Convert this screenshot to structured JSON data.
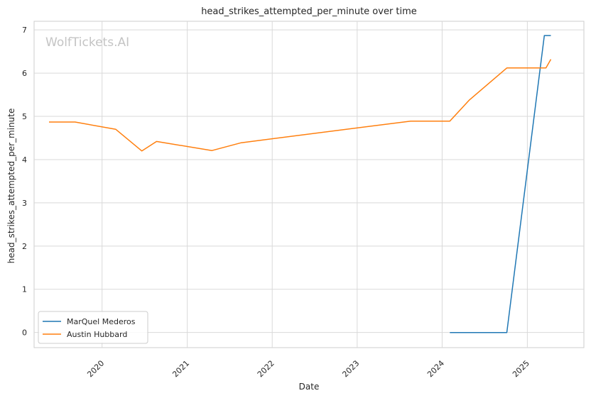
{
  "chart_data": {
    "type": "line",
    "title": "head_strikes_attempted_per_minute over time",
    "xlabel": "Date",
    "ylabel": "head_strikes_attempted_per_minute",
    "watermark": "WolfTickets.AI",
    "x_ticks": [
      "2020",
      "2021",
      "2022",
      "2023",
      "2024",
      "2025"
    ],
    "y_ticks": [
      "0",
      "1",
      "2",
      "3",
      "4",
      "5",
      "6",
      "7"
    ],
    "xlim": [
      "2019-03-15",
      "2025-09-01"
    ],
    "ylim": [
      -0.35,
      7.2
    ],
    "grid": true,
    "legend_position": "lower-left",
    "series": [
      {
        "name": "MarQuel Mederos",
        "color": "#1f77b4",
        "points": [
          {
            "x": "2024-02-03",
            "y": 0.0
          },
          {
            "x": "2024-10-05",
            "y": 0.0
          },
          {
            "x": "2025-03-15",
            "y": 6.87
          },
          {
            "x": "2025-04-12",
            "y": 6.87
          }
        ]
      },
      {
        "name": "Austin Hubbard",
        "color": "#ff7f0e",
        "points": [
          {
            "x": "2019-05-18",
            "y": 4.87
          },
          {
            "x": "2019-09-07",
            "y": 4.87
          },
          {
            "x": "2020-02-29",
            "y": 4.7
          },
          {
            "x": "2020-06-20",
            "y": 4.2
          },
          {
            "x": "2020-08-22",
            "y": 4.42
          },
          {
            "x": "2021-04-17",
            "y": 4.21
          },
          {
            "x": "2021-08-21",
            "y": 4.39
          },
          {
            "x": "2023-08-19",
            "y": 4.89
          },
          {
            "x": "2024-02-03",
            "y": 4.89
          },
          {
            "x": "2024-04-27",
            "y": 5.38
          },
          {
            "x": "2024-10-05",
            "y": 6.12
          },
          {
            "x": "2025-03-22",
            "y": 6.12
          },
          {
            "x": "2025-04-12",
            "y": 6.32
          }
        ]
      }
    ]
  }
}
